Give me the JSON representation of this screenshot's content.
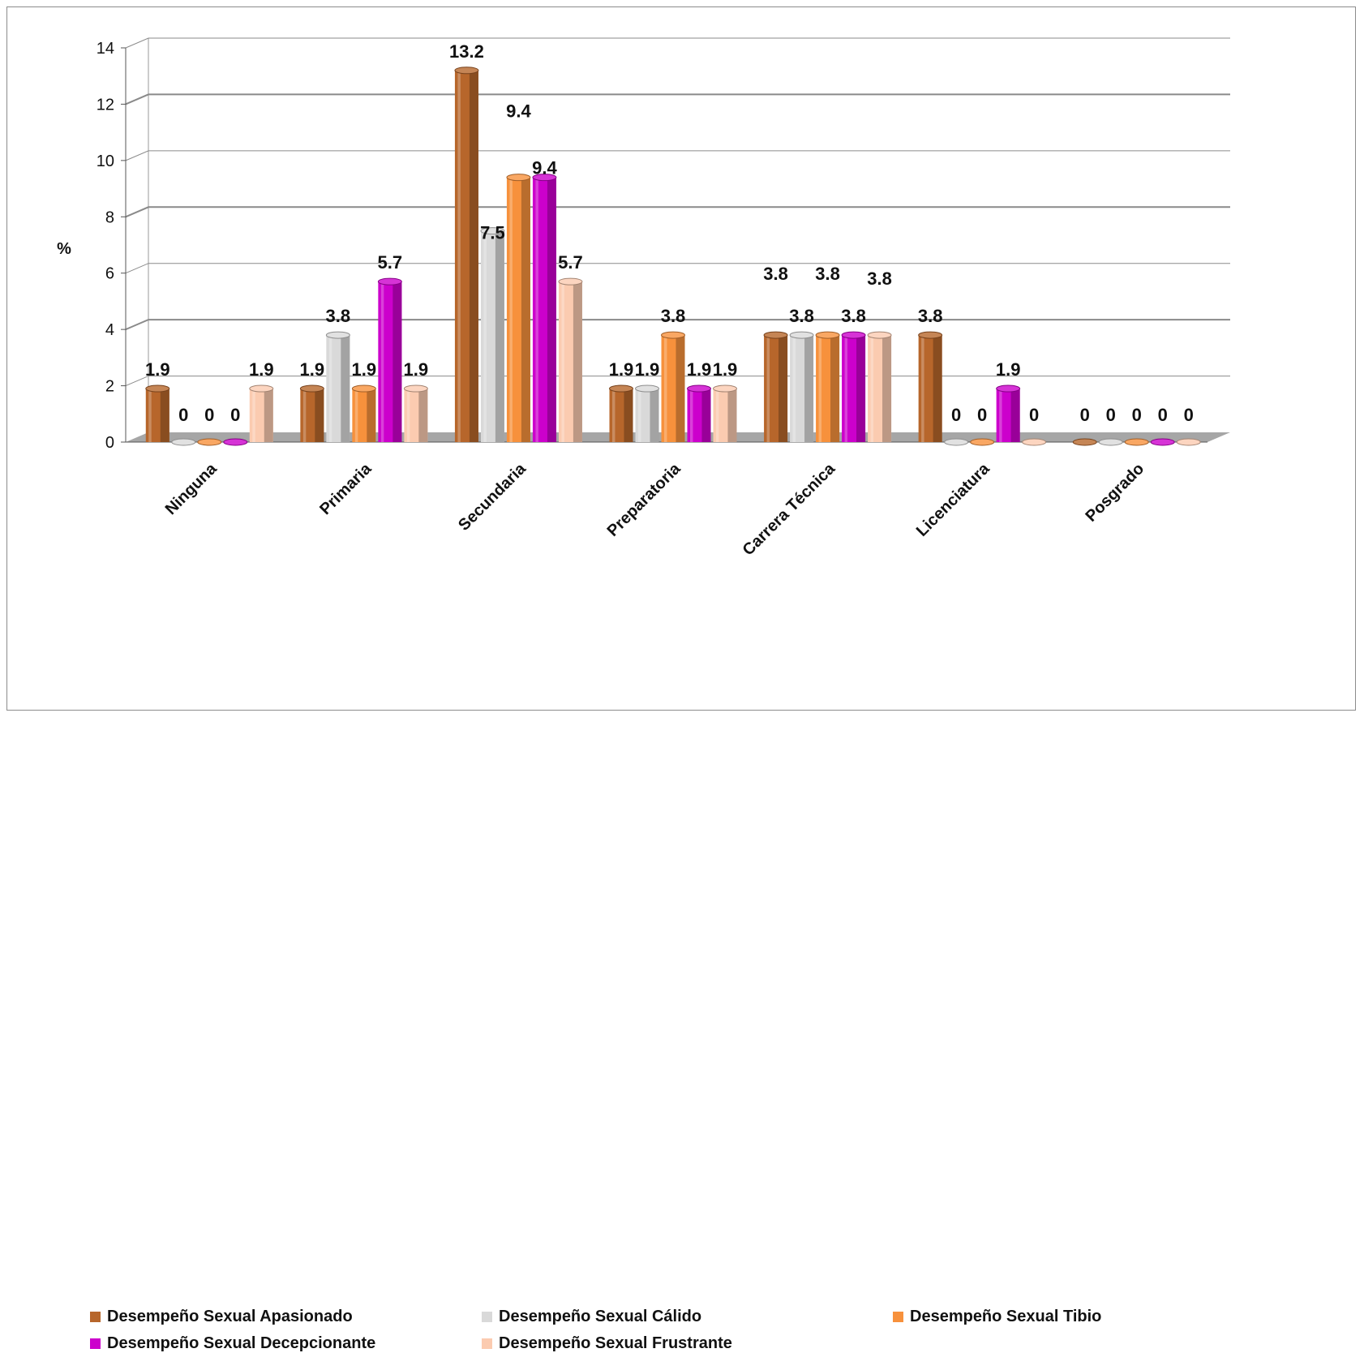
{
  "chart_data": {
    "type": "bar",
    "title": "",
    "xlabel": "",
    "ylabel": "%",
    "ylim": [
      0,
      14
    ],
    "yticks": [
      "0",
      "2",
      "4",
      "6",
      "8",
      "10",
      "12",
      "14"
    ],
    "grid": true,
    "legend_position": "bottom",
    "categories": [
      "Ninguna",
      "Primaria",
      "Secundaria",
      "Preparatoria",
      "Carrera Técnica",
      "Licenciatura",
      "Posgrado"
    ],
    "series": [
      {
        "name": "Desempeño Sexual Apasionado",
        "color": "#b7662b",
        "values": [
          1.9,
          1.9,
          13.2,
          1.9,
          3.8,
          3.8,
          0
        ],
        "labels": [
          "1.9",
          "1.9",
          "13.2",
          "1.9",
          "3.8",
          "3.8",
          "0"
        ]
      },
      {
        "name": "Desempeño Sexual Cálido",
        "color": "#d9d9d9",
        "values": [
          0,
          3.8,
          7.5,
          1.9,
          3.8,
          0,
          0
        ],
        "labels": [
          "0",
          "3.8",
          "7.5",
          "1.9",
          "3.8",
          "0",
          "0"
        ]
      },
      {
        "name": "Desempeño Sexual Tibio",
        "color": "#f7913c",
        "values": [
          0,
          1.9,
          9.4,
          3.8,
          3.8,
          0,
          0
        ],
        "labels": [
          "0",
          "1.9",
          "9.4",
          "3.8",
          "3.8",
          "0",
          "0"
        ]
      },
      {
        "name": "Desempeño Sexual Decepcionante",
        "color": "#cc00cc",
        "values": [
          0,
          5.7,
          9.4,
          1.9,
          3.8,
          1.9,
          0
        ],
        "labels": [
          "0",
          "5.7",
          "9.4",
          "1.9",
          "3.8",
          "1.9",
          "0"
        ]
      },
      {
        "name": "Desempeño Sexual Frustrante",
        "color": "#fbcbb0",
        "values": [
          1.9,
          1.9,
          5.7,
          1.9,
          3.8,
          0,
          0
        ],
        "labels": [
          "1.9",
          "1.9",
          "5.7",
          "1.9",
          "3.8",
          "0",
          "0"
        ]
      }
    ]
  }
}
